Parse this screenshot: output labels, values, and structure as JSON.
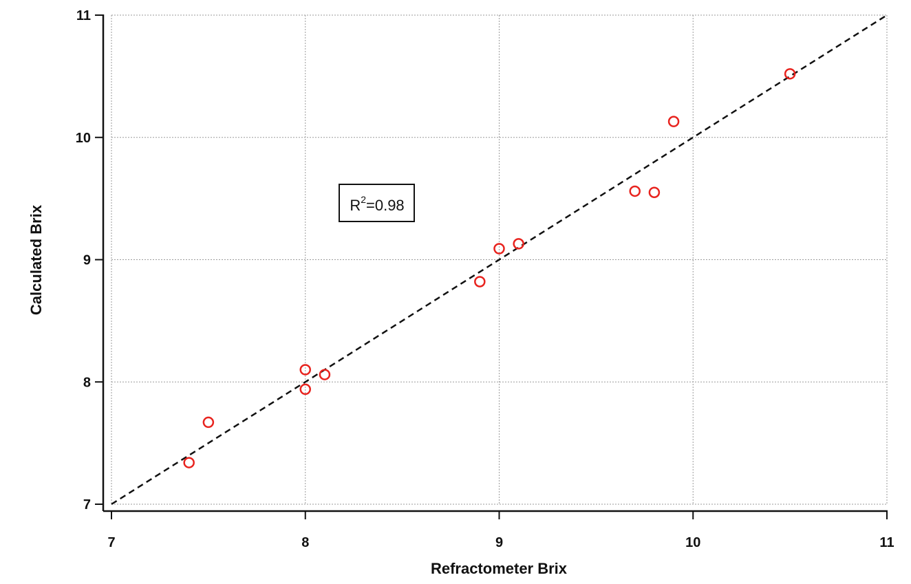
{
  "chart_data": {
    "type": "scatter",
    "title": "",
    "xlabel": "Refractometer Brix",
    "ylabel": "Calculated Brix",
    "xlim": [
      7,
      11
    ],
    "ylim": [
      7,
      11
    ],
    "xticks": [
      7,
      8,
      9,
      10,
      11
    ],
    "yticks": [
      7,
      8,
      9,
      10,
      11
    ],
    "x_tick_labels": [
      "7",
      "8",
      "9",
      "10",
      "11"
    ],
    "y_tick_labels": [
      "7",
      "8",
      "9",
      "10",
      "11"
    ],
    "grid": true,
    "marker": "open-circle",
    "marker_color": "#e8231e",
    "series": [
      {
        "points": [
          {
            "x": 7.4,
            "y": 7.34
          },
          {
            "x": 7.5,
            "y": 7.67
          },
          {
            "x": 8.0,
            "y": 8.1
          },
          {
            "x": 8.0,
            "y": 7.94
          },
          {
            "x": 8.1,
            "y": 8.06
          },
          {
            "x": 8.9,
            "y": 8.82
          },
          {
            "x": 9.0,
            "y": 9.09
          },
          {
            "x": 9.1,
            "y": 9.13
          },
          {
            "x": 9.7,
            "y": 9.56
          },
          {
            "x": 9.8,
            "y": 9.55
          },
          {
            "x": 9.9,
            "y": 10.13
          },
          {
            "x": 10.5,
            "y": 10.52
          }
        ]
      }
    ],
    "reference_line": {
      "style": "dashed",
      "color": "#111111",
      "from": [
        7,
        7
      ],
      "to": [
        11,
        11
      ]
    },
    "annotation": {
      "base": "R",
      "superscript": "2",
      "suffix": "=0.98",
      "at": [
        8.55,
        9.48
      ]
    }
  }
}
